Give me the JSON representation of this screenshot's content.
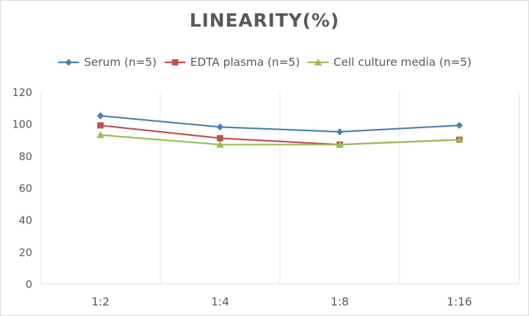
{
  "chart_data": {
    "type": "line",
    "title": "LINEARITY(%)",
    "categories": [
      "1:2",
      "1:4",
      "1:8",
      "1:16"
    ],
    "ylim": [
      0,
      120
    ],
    "yticks": [
      0,
      20,
      40,
      60,
      80,
      100,
      120
    ],
    "grid": "vertical category lines",
    "legend_position": "top",
    "series": [
      {
        "name": "Serum (n=5)",
        "values": [
          105,
          98,
          95,
          99
        ],
        "color": "#4e7fb3",
        "marker": "diamond"
      },
      {
        "name": "EDTA plasma (n=5)",
        "values": [
          99,
          91,
          87,
          90
        ],
        "color": "#c0504d",
        "marker": "square"
      },
      {
        "name": "Cell culture media (n=5)",
        "values": [
          93,
          87,
          87,
          90
        ],
        "color": "#9bbb59",
        "marker": "triangle"
      }
    ]
  }
}
